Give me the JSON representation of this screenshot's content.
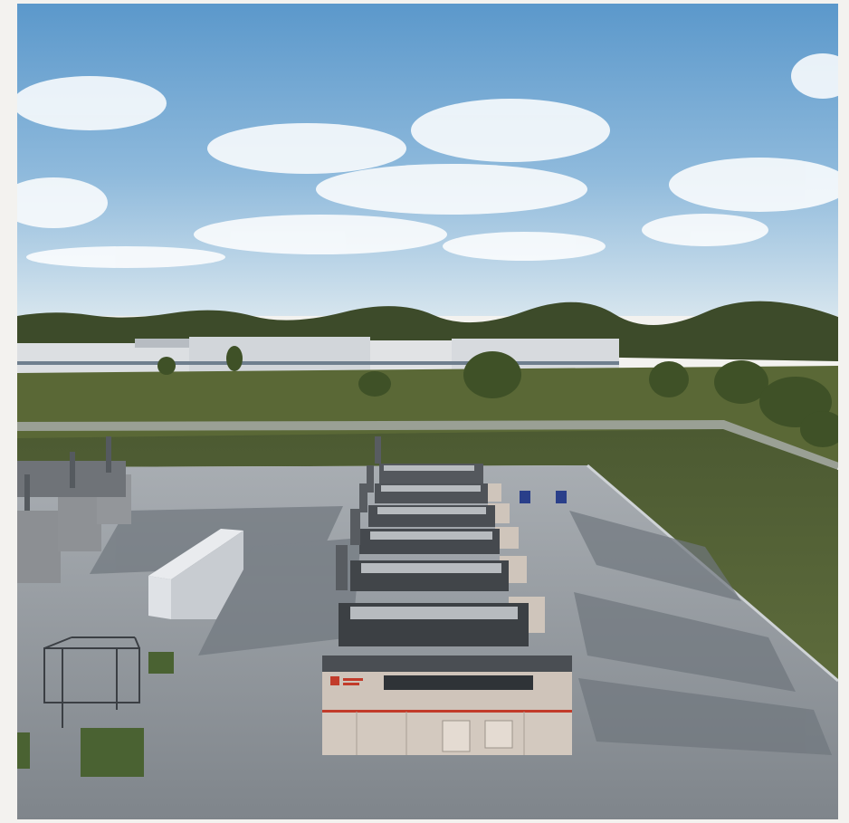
{
  "scene": {
    "type": "photo-render",
    "sky_color_top": "#5f9ccd",
    "sky_color_horizon": "#d4e4ef",
    "grass_color": "#55633a",
    "concrete_color": "#8d949b",
    "generator_body_color": "#ccc2b9",
    "accent_color": "#c23b2a",
    "generator_units": 6,
    "unit_logo_text": ""
  }
}
